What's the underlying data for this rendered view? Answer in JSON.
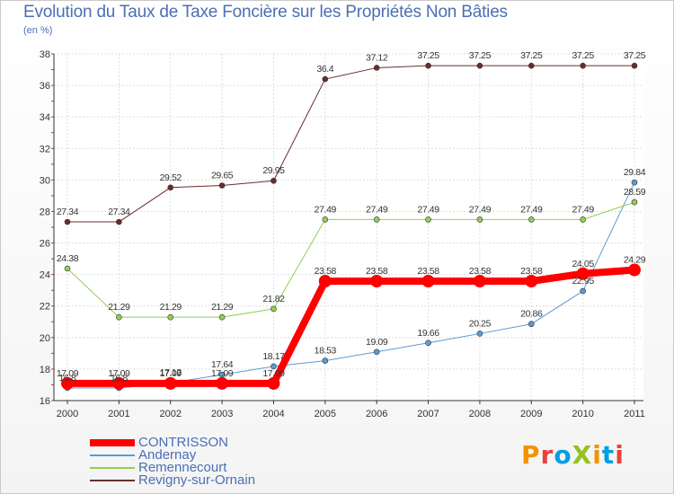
{
  "title": "Evolution du Taux de Taxe Foncière sur les Propriétés Non Bâties",
  "subtitle": "(en %)",
  "logo": {
    "text": "ProXiti",
    "colors": [
      "#f39200",
      "#e8413c",
      "#009fe3",
      "#95c11f",
      "#f39200",
      "#009fe3",
      "#e8413c"
    ]
  },
  "chart_data": {
    "type": "line",
    "title": "Evolution du Taux de Taxe Foncière sur les Propriétés Non Bâties",
    "ylabel": "(en %)",
    "xlabel": "",
    "x": [
      "2000",
      "2001",
      "2002",
      "2003",
      "2004",
      "2005",
      "2006",
      "2007",
      "2008",
      "2009",
      "2010",
      "2011"
    ],
    "ylim": [
      16,
      38
    ],
    "yticks": [
      "16",
      "18",
      "20",
      "22",
      "24",
      "26",
      "28",
      "30",
      "32",
      "34",
      "36",
      "38"
    ],
    "grid": true,
    "series": [
      {
        "name": "CONTRISSON",
        "color": "#ff0000",
        "emphasis": true,
        "values": [
          17.09,
          17.09,
          17.09,
          17.09,
          17.09,
          23.58,
          23.58,
          23.58,
          23.58,
          23.58,
          24.05,
          24.29
        ],
        "labels": [
          "17.09",
          "17.09",
          "17.09",
          "17.09",
          "17.09",
          "23.58",
          "23.58",
          "23.58",
          "23.58",
          "23.58",
          "24.05",
          "24.29"
        ]
      },
      {
        "name": "Andernay",
        "color": "#5b9bd5",
        "values": [
          16.8,
          16.8,
          17.13,
          17.64,
          18.17,
          18.53,
          19.09,
          19.66,
          20.25,
          20.86,
          22.95,
          29.84
        ],
        "labels": [
          "16.8",
          "16.8",
          "17.13",
          "17.64",
          "18.17",
          "18.53",
          "19.09",
          "19.66",
          "20.25",
          "20.86",
          "22.95",
          "29.84"
        ]
      },
      {
        "name": "Remennecourt",
        "color": "#92d050",
        "values": [
          24.38,
          21.29,
          21.29,
          21.29,
          21.82,
          27.49,
          27.49,
          27.49,
          27.49,
          27.49,
          27.49,
          28.59
        ],
        "labels": [
          "24.38",
          "21.29",
          "21.29",
          "21.29",
          "21.82",
          "27.49",
          "27.49",
          "27.49",
          "27.49",
          "27.49",
          "27.49",
          "28.59"
        ]
      },
      {
        "name": "Revigny-sur-Ornain",
        "color": "#6b2c2c",
        "values": [
          27.34,
          27.34,
          29.52,
          29.65,
          29.95,
          36.4,
          37.12,
          37.25,
          37.25,
          37.25,
          37.25,
          37.25
        ],
        "labels": [
          "27.34",
          "27.34",
          "29.52",
          "29.65",
          "29.95",
          "36.4",
          "37.12",
          "37.25",
          "37.25",
          "37.25",
          "37.25",
          "37.25"
        ]
      }
    ]
  }
}
